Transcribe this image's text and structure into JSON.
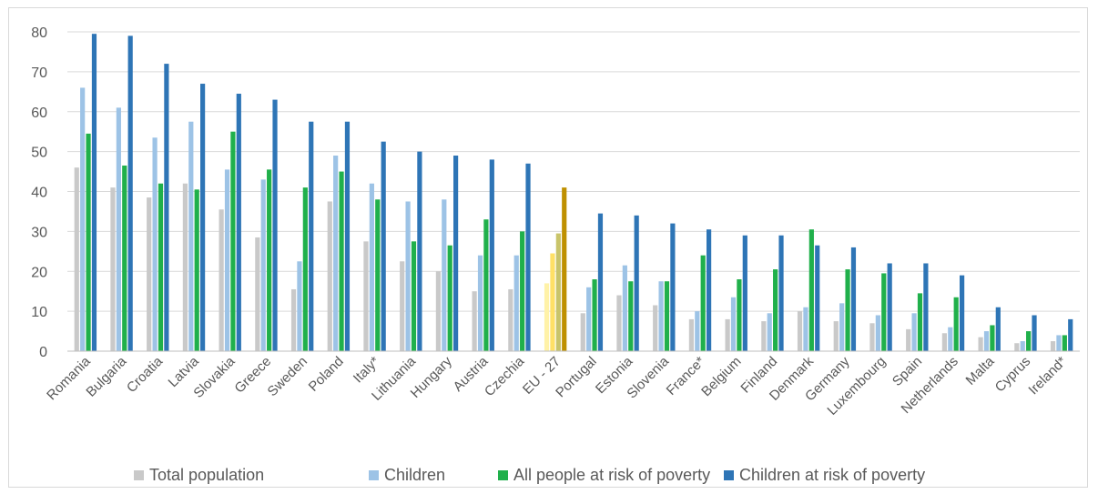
{
  "chart_data": {
    "type": "bar",
    "ylim": [
      0,
      80
    ],
    "yticks": [
      0,
      10,
      20,
      30,
      40,
      50,
      60,
      70,
      80
    ],
    "grid": true,
    "legend_position": "bottom",
    "categories": [
      "Romania",
      "Bulgaria",
      "Croatia",
      "Latvia",
      "Slovakia",
      "Greece",
      "Sweden",
      "Poland",
      "Italy*",
      "Lithuania",
      "Hungary",
      "Austria",
      "Czechia",
      "EU - 27",
      "Portugal",
      "Estonia",
      "Slovenia",
      "France*",
      "Belgium",
      "Finland",
      "Denmark",
      "Germany",
      "Luxembourg",
      "Spain",
      "Netherlands",
      "Malta",
      "Cyprus",
      "Ireland*"
    ],
    "highlight_category": "EU - 27",
    "series": [
      {
        "name": "Total population",
        "color": "#c9c9c9",
        "highlight_color": "#fff2a8",
        "values": [
          46,
          41,
          38.5,
          42,
          35.5,
          28.5,
          15.5,
          37.5,
          27.5,
          22.5,
          20,
          15,
          15.5,
          17,
          9.5,
          14,
          11.5,
          8,
          8,
          7.5,
          10,
          7.5,
          7,
          5.5,
          4.5,
          3.5,
          2,
          2.5
        ]
      },
      {
        "name": "Children",
        "color": "#9dc3e6",
        "highlight_color": "#ffe066",
        "values": [
          66,
          61,
          53.5,
          57.5,
          45.5,
          43,
          22.5,
          49,
          42,
          37.5,
          38,
          24,
          24,
          24.5,
          16,
          21.5,
          17.5,
          10,
          13.5,
          9.5,
          11,
          12,
          9,
          9.5,
          6,
          5,
          2.5,
          4
        ]
      },
      {
        "name": "All people at risk of poverty",
        "color": "#20b04b",
        "highlight_color": "#c9c46a",
        "values": [
          54.5,
          46.5,
          42,
          40.5,
          55,
          45.5,
          41,
          45,
          38,
          27.5,
          26.5,
          33,
          30,
          29.5,
          18,
          17.5,
          17.5,
          24,
          18,
          20.5,
          30.5,
          20.5,
          19.5,
          14.5,
          13.5,
          6.5,
          5,
          4
        ]
      },
      {
        "name": "Children at risk of poverty",
        "color": "#2e75b6",
        "highlight_color": "#bf9000",
        "values": [
          79.5,
          79,
          72,
          67,
          64.5,
          63,
          57.5,
          57.5,
          52.5,
          50,
          49,
          48,
          47,
          41,
          34.5,
          34,
          32,
          30.5,
          29,
          29,
          26.5,
          26,
          22,
          22,
          19,
          11,
          9,
          8
        ]
      }
    ]
  }
}
